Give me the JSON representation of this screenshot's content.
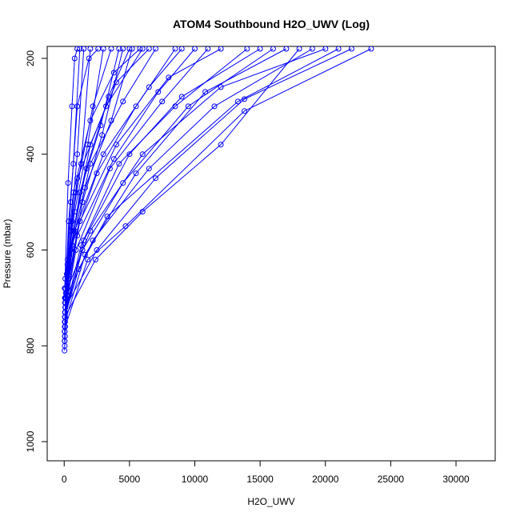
{
  "chart_data": {
    "type": "line",
    "title": "ATOM4 Southbound H2O_UWV (Log)",
    "xlabel": "H2O_UWV",
    "ylabel": "Pressure (mbar)",
    "xlim": [
      -1300,
      33000
    ],
    "ylim": [
      1040,
      175
    ],
    "y_reversed": true,
    "grid": false,
    "legend": "none",
    "color": "#0000ff",
    "x_ticks": [
      0,
      5000,
      10000,
      15000,
      20000,
      25000,
      30000
    ],
    "x_tick_labels": [
      "0",
      "5000",
      "10000",
      "15000",
      "20000",
      "25000",
      "30000"
    ],
    "y_ticks": [
      200,
      400,
      600,
      800,
      1000
    ],
    "y_tick_labels": [
      "200",
      "400",
      "600",
      "800",
      "1000"
    ],
    "series": [
      {
        "points": [
          [
            40,
            790
          ],
          [
            260,
            620
          ],
          [
            1000,
            450
          ],
          [
            3200,
            300
          ],
          [
            6000,
            180
          ]
        ]
      },
      {
        "points": [
          [
            60,
            760
          ],
          [
            500,
            600
          ],
          [
            2000,
            420
          ],
          [
            4500,
            290
          ],
          [
            7000,
            180
          ]
        ]
      },
      {
        "points": [
          [
            80,
            720
          ],
          [
            800,
            560
          ],
          [
            3000,
            400
          ],
          [
            6500,
            260
          ],
          [
            9000,
            180
          ]
        ]
      },
      {
        "points": [
          [
            50,
            780
          ],
          [
            300,
            640
          ],
          [
            1200,
            480
          ],
          [
            2800,
            340
          ],
          [
            4200,
            180
          ]
        ]
      },
      {
        "points": [
          [
            90,
            700
          ],
          [
            1200,
            540
          ],
          [
            4000,
            380
          ],
          [
            8000,
            240
          ],
          [
            12000,
            180
          ]
        ]
      },
      {
        "points": [
          [
            30,
            770
          ],
          [
            200,
            650
          ],
          [
            800,
            520
          ],
          [
            1800,
            380
          ],
          [
            3000,
            180
          ]
        ]
      },
      {
        "points": [
          [
            70,
            740
          ],
          [
            1500,
            580
          ],
          [
            5000,
            400
          ],
          [
            9000,
            280
          ],
          [
            15000,
            180
          ]
        ]
      },
      {
        "points": [
          [
            100,
            710
          ],
          [
            600,
            590
          ],
          [
            2500,
            440
          ],
          [
            5500,
            300
          ],
          [
            8500,
            180
          ]
        ]
      },
      {
        "points": [
          [
            40,
            750
          ],
          [
            400,
            610
          ],
          [
            1600,
            470
          ],
          [
            3600,
            330
          ],
          [
            5200,
            180
          ]
        ]
      },
      {
        "points": [
          [
            120,
            690
          ],
          [
            2000,
            560
          ],
          [
            6000,
            400
          ],
          [
            12000,
            260
          ],
          [
            20000,
            180
          ]
        ]
      },
      {
        "points": [
          [
            60,
            730
          ],
          [
            900,
            600
          ],
          [
            3500,
            430
          ],
          [
            7500,
            290
          ],
          [
            11000,
            180
          ]
        ]
      },
      {
        "points": [
          [
            80,
            760
          ],
          [
            1800,
            620
          ],
          [
            4700,
            550
          ],
          [
            13800,
            310
          ],
          [
            23500,
            180
          ]
        ]
      },
      {
        "points": [
          [
            50,
            740
          ],
          [
            1100,
            640
          ],
          [
            3300,
            530
          ],
          [
            13300,
            290
          ],
          [
            21000,
            180
          ]
        ]
      },
      {
        "points": [
          [
            90,
            720
          ],
          [
            2500,
            600
          ],
          [
            7000,
            450
          ],
          [
            13800,
            285
          ],
          [
            22000,
            180
          ]
        ]
      },
      {
        "points": [
          [
            40,
            800
          ],
          [
            150,
            700
          ],
          [
            500,
            560
          ],
          [
            1000,
            400
          ],
          [
            1500,
            180
          ]
        ]
      },
      {
        "points": [
          [
            30,
            790
          ],
          [
            100,
            680
          ],
          [
            350,
            540
          ],
          [
            700,
            420
          ],
          [
            1200,
            180
          ]
        ]
      },
      {
        "points": [
          [
            60,
            710
          ],
          [
            700,
            560
          ],
          [
            2000,
            380
          ],
          [
            4000,
            250
          ],
          [
            6500,
            180
          ]
        ]
      },
      {
        "points": [
          [
            80,
            730
          ],
          [
            1300,
            590
          ],
          [
            4200,
            420
          ],
          [
            8500,
            300
          ],
          [
            14000,
            180
          ]
        ]
      },
      {
        "points": [
          [
            50,
            770
          ],
          [
            250,
            630
          ],
          [
            900,
            480
          ],
          [
            2200,
            300
          ],
          [
            3600,
            180
          ]
        ]
      },
      {
        "points": [
          [
            70,
            750
          ],
          [
            1600,
            610
          ],
          [
            5500,
            440
          ],
          [
            10800,
            270
          ],
          [
            17000,
            180
          ]
        ]
      },
      {
        "points": [
          [
            100,
            700
          ],
          [
            2200,
            580
          ],
          [
            6500,
            430
          ],
          [
            11500,
            300
          ],
          [
            19000,
            180
          ]
        ]
      },
      {
        "points": [
          [
            40,
            760
          ],
          [
            450,
            600
          ],
          [
            1700,
            430
          ],
          [
            3400,
            280
          ],
          [
            5000,
            180
          ]
        ]
      },
      {
        "points": [
          [
            60,
            780
          ],
          [
            350,
            660
          ],
          [
            1400,
            500
          ],
          [
            2900,
            360
          ],
          [
            4500,
            180
          ]
        ]
      },
      {
        "points": [
          [
            90,
            720
          ],
          [
            1000,
            570
          ],
          [
            3800,
            410
          ],
          [
            7200,
            270
          ],
          [
            10000,
            180
          ]
        ]
      },
      {
        "points": [
          [
            30,
            810
          ],
          [
            180,
            690
          ],
          [
            600,
            540
          ],
          [
            1300,
            420
          ],
          [
            2000,
            180
          ]
        ]
      },
      {
        "points": [
          [
            70,
            730
          ],
          [
            1400,
            600
          ],
          [
            4500,
            460
          ],
          [
            9500,
            300
          ],
          [
            16000,
            180
          ]
        ]
      },
      {
        "points": [
          [
            50,
            700
          ],
          [
            500,
            500
          ],
          [
            1000,
            300
          ],
          [
            1900,
            200
          ],
          [
            2600,
            180
          ]
        ]
      },
      {
        "points": [
          [
            40,
            680
          ],
          [
            300,
            460
          ],
          [
            600,
            300
          ],
          [
            800,
            200
          ],
          [
            1000,
            180
          ]
        ]
      },
      {
        "points": [
          [
            80,
            660
          ],
          [
            700,
            480
          ],
          [
            2000,
            330
          ],
          [
            3800,
            230
          ],
          [
            5800,
            180
          ]
        ]
      },
      {
        "points": [
          [
            60,
            740
          ],
          [
            2400,
            620
          ],
          [
            6000,
            520
          ],
          [
            12000,
            380
          ],
          [
            18000,
            180
          ]
        ]
      }
    ]
  }
}
